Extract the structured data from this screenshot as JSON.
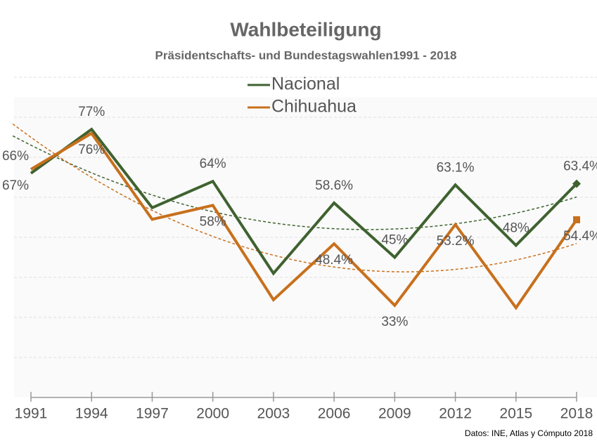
{
  "chart_data": {
    "type": "line",
    "title": "Wahlbeteiligung",
    "subtitle": "Präsidentschafts- und Bundestagswahlen1991 - 2018",
    "source": "Datos: INE, Atlas y Cómputo 2018",
    "categories": [
      "1991",
      "1994",
      "1997",
      "2000",
      "2003",
      "2006",
      "2009",
      "2012",
      "2015",
      "2018"
    ],
    "series": [
      {
        "name": "Nacional",
        "color": "#3f6230",
        "marker": "diamond",
        "values": [
          66,
          77,
          57.4,
          64,
          41,
          58.6,
          45,
          63.1,
          48,
          63.4
        ],
        "value_labels": [
          "66%",
          "77%",
          null,
          "64%",
          null,
          "58.6%",
          "45%",
          "63.1%",
          "48%",
          "63.4%"
        ]
      },
      {
        "name": "Chihuahua",
        "color": "#c8701c",
        "marker": "square",
        "values": [
          67,
          76,
          54.5,
          58,
          34.4,
          48.4,
          33,
          53.2,
          32.4,
          54.4
        ],
        "value_labels": [
          "67%",
          "76%",
          null,
          "58%",
          null,
          "48.4%",
          "33%",
          "53.2%",
          null,
          "54.4%"
        ]
      }
    ],
    "ylim": [
      10,
      100
    ],
    "yticks": [
      10,
      20,
      30,
      40,
      50,
      60,
      70,
      80,
      90
    ],
    "grid": true,
    "trendline": "polynomial",
    "legend": "top"
  }
}
